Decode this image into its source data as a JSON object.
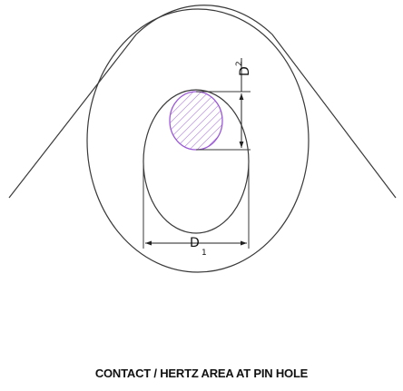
{
  "caption": "CONTACT / HERTZ AREA AT PIN HOLE",
  "dimensions": {
    "d1": {
      "letter": "D",
      "subscript": "1"
    },
    "d2": {
      "letter": "D",
      "subscript": "2"
    }
  },
  "colors": {
    "line": "#3a3a3a",
    "contact_area": "#9b59d6"
  }
}
